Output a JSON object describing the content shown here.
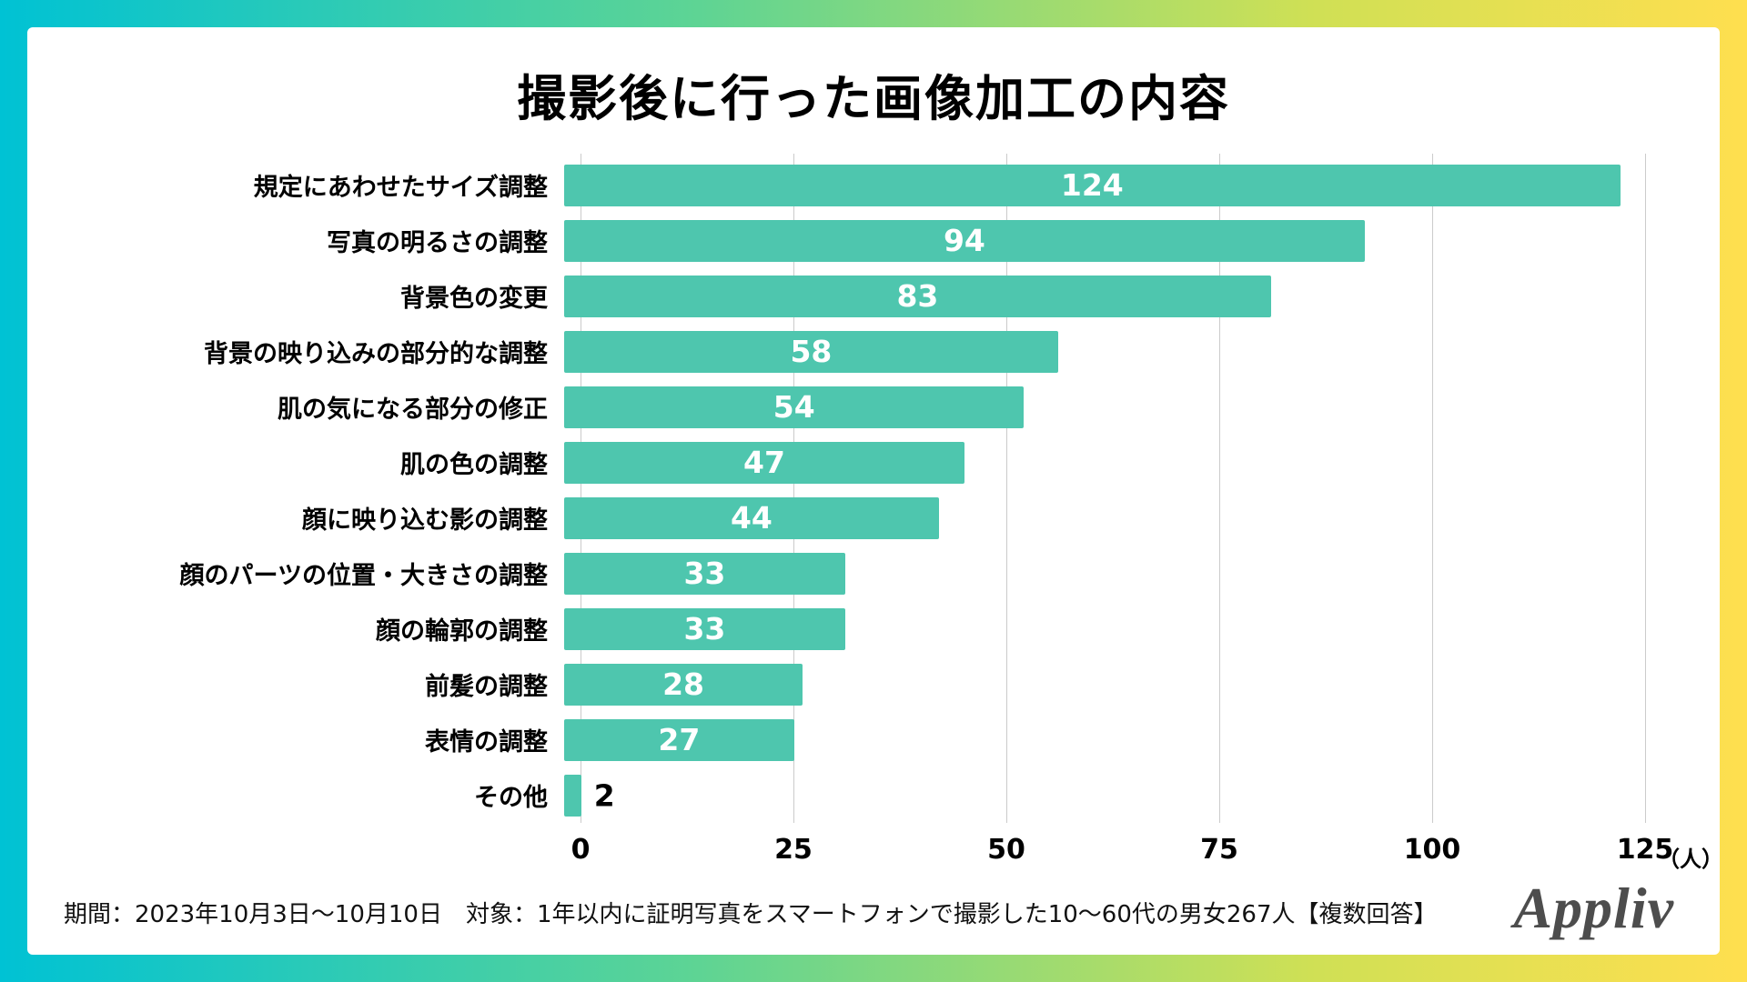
{
  "title": "撮影後に行った画像加工の内容",
  "chart_data": {
    "type": "bar",
    "orientation": "horizontal",
    "title": "撮影後に行った画像加工の内容",
    "categories": [
      "規定にあわせたサイズ調整",
      "写真の明るさの調整",
      "背景色の変更",
      "背景の映り込みの部分的な調整",
      "肌の気になる部分の修正",
      "肌の色の調整",
      "顔に映り込む影の調整",
      "顔のパーツの位置・大きさの調整",
      "顔の輪郭の調整",
      "前髪の調整",
      "表情の調整",
      "その他"
    ],
    "values": [
      124,
      94,
      83,
      58,
      54,
      47,
      44,
      33,
      33,
      28,
      27,
      2
    ],
    "xlim": [
      0,
      125
    ],
    "ticks": [
      0,
      25,
      50,
      75,
      100,
      125
    ],
    "unit_label": "（人）",
    "grid": true,
    "bar_color": "#4ec6ae",
    "value_label_color_inside": "#ffffff",
    "value_label_color_outside": "#000000"
  },
  "footer": {
    "note": "期間：2023年10月3日〜10月10日　対象：1年以内に証明写真をスマートフォンで撮影した10〜60代の男女267人【複数回答】",
    "logo": "Appliv"
  },
  "frame": {
    "gradient_left_color": "#00c2d4",
    "gradient_right_color": "#ffdf4f",
    "panel_color": "#ffffff"
  }
}
